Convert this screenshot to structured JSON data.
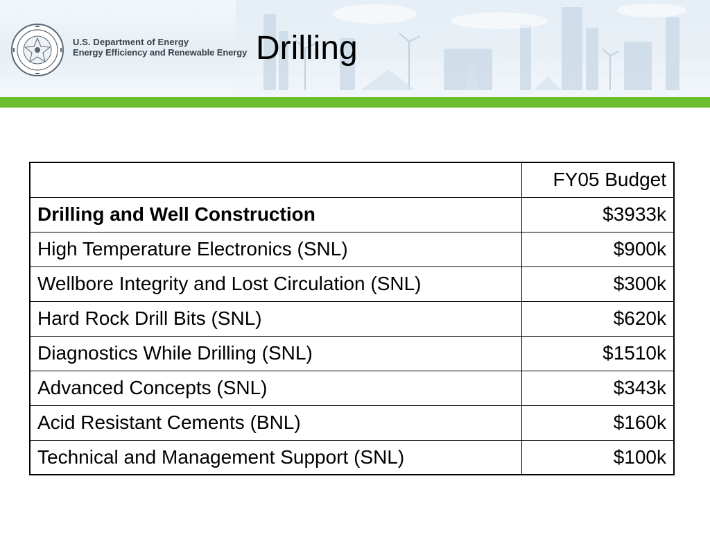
{
  "header": {
    "agency_line1": "U.S. Department of Energy",
    "agency_line2": "Energy Efficiency and Renewable Energy",
    "logo_icon": "doe-seal-icon",
    "accent_color": "#6cbe2c"
  },
  "slide": {
    "title": "Drilling"
  },
  "table": {
    "header": {
      "label": "",
      "value": "FY05 Budget"
    },
    "rows": [
      {
        "label": "Drilling and Well Construction",
        "value": "$3933k",
        "bold": true
      },
      {
        "label": "High Temperature Electronics (SNL)",
        "value": "$900k"
      },
      {
        "label": "Wellbore Integrity and Lost Circulation (SNL)",
        "value": "$300k"
      },
      {
        "label": "Hard Rock Drill Bits (SNL)",
        "value": "$620k"
      },
      {
        "label": "Diagnostics While Drilling (SNL)",
        "value": "$1510k"
      },
      {
        "label": "Advanced Concepts (SNL)",
        "value": "$343k"
      },
      {
        "label": "Acid Resistant Cements (BNL)",
        "value": "$160k"
      },
      {
        "label": "Technical and Management Support (SNL)",
        "value": "$100k"
      }
    ]
  }
}
